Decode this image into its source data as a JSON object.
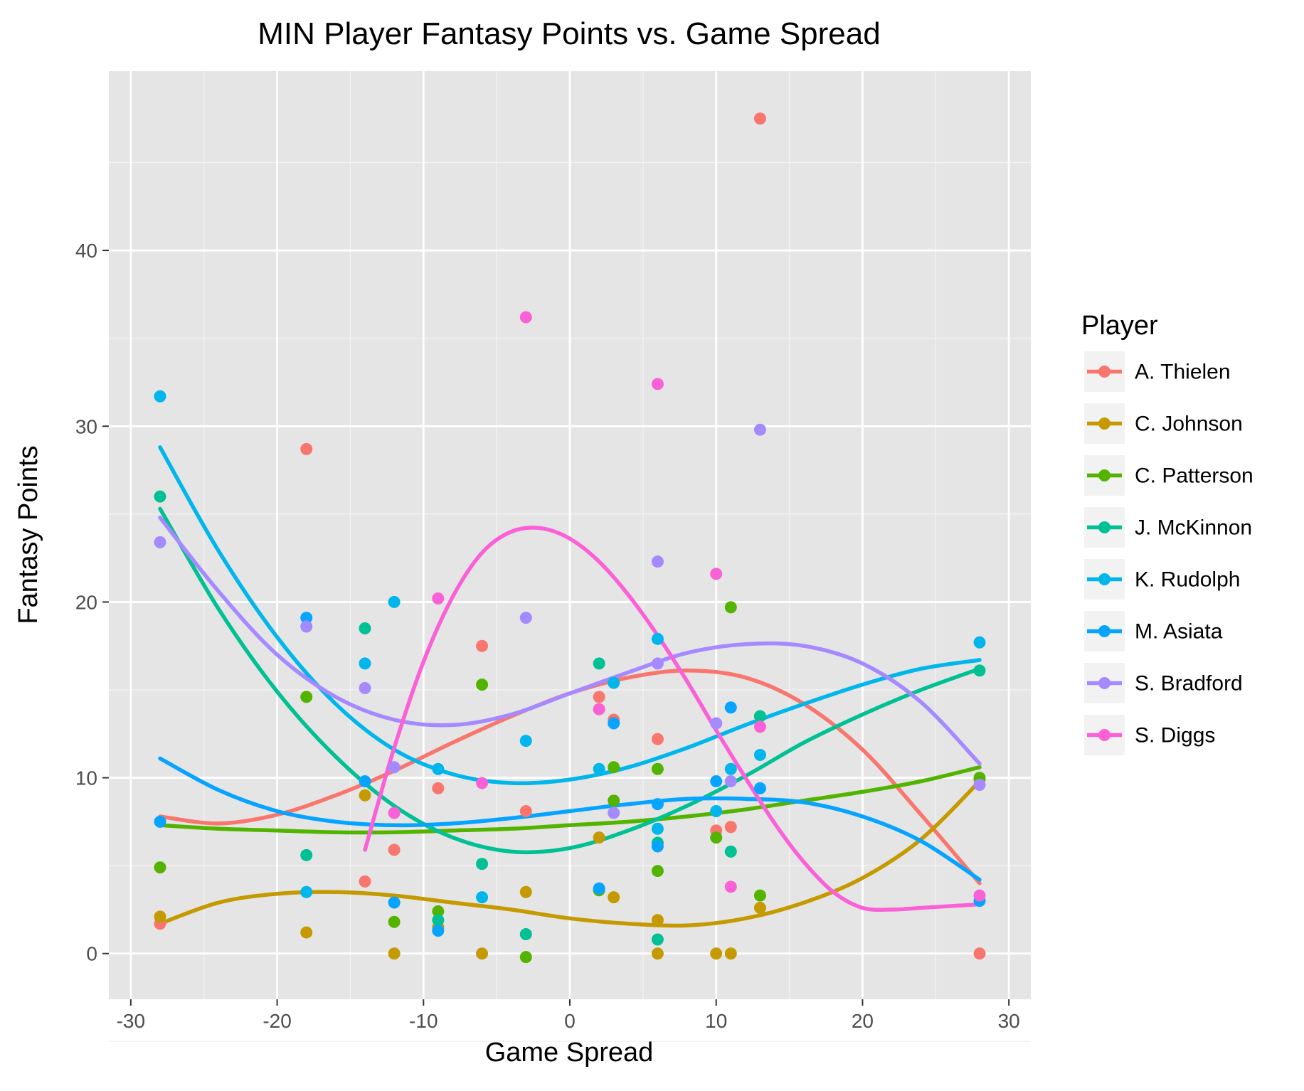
{
  "chart_data": {
    "type": "scatter",
    "title": "MIN Player Fantasy Points vs. Game Spread",
    "xlabel": "Game Spread",
    "ylabel": "Fantasy Points",
    "xlim": [
      -31.5,
      31.5
    ],
    "ylim": [
      -2.6,
      50.2
    ],
    "xticks": [
      -30,
      -20,
      -10,
      0,
      10,
      20,
      30
    ],
    "yticks": [
      0,
      10,
      20,
      30,
      40
    ],
    "grid": true,
    "legend_position": "right",
    "legend_title": "Player",
    "series": [
      {
        "name": "A. Thielen",
        "color": "#F8766D",
        "points": [
          [
            -28,
            1.7
          ],
          [
            -18,
            28.7
          ],
          [
            -14,
            4.1
          ],
          [
            -12,
            5.9
          ],
          [
            -9,
            9.4
          ],
          [
            -6,
            17.5
          ],
          [
            -3,
            8.1
          ],
          [
            2,
            14.6
          ],
          [
            3,
            13.3
          ],
          [
            6,
            12.2
          ],
          [
            10,
            7.0
          ],
          [
            11,
            7.2
          ],
          [
            13,
            47.5
          ],
          [
            28,
            0.0
          ]
        ],
        "trend": [
          [
            -28,
            7.8
          ],
          [
            -24,
            7.4
          ],
          [
            -20,
            7.9
          ],
          [
            -16,
            9.0
          ],
          [
            -12,
            10.4
          ],
          [
            -8,
            12.0
          ],
          [
            -4,
            13.5
          ],
          [
            0,
            14.8
          ],
          [
            4,
            15.7
          ],
          [
            8,
            16.1
          ],
          [
            12,
            15.7
          ],
          [
            16,
            14.2
          ],
          [
            20,
            11.6
          ],
          [
            24,
            7.9
          ],
          [
            28,
            4.0
          ]
        ]
      },
      {
        "name": "C. Johnson",
        "color": "#C49A00",
        "points": [
          [
            -28,
            2.1
          ],
          [
            -18,
            1.2
          ],
          [
            -14,
            9.0
          ],
          [
            -12,
            0.0
          ],
          [
            -9,
            1.5
          ],
          [
            -6,
            0.0
          ],
          [
            -3,
            3.5
          ],
          [
            2,
            6.6
          ],
          [
            3,
            3.2
          ],
          [
            6,
            1.9
          ],
          [
            6,
            0.0
          ],
          [
            10,
            0.0
          ],
          [
            11,
            0.0
          ],
          [
            13,
            2.6
          ],
          [
            28,
            9.9
          ]
        ],
        "trend": [
          [
            -28,
            1.7
          ],
          [
            -24,
            2.9
          ],
          [
            -20,
            3.4
          ],
          [
            -16,
            3.5
          ],
          [
            -12,
            3.3
          ],
          [
            -8,
            2.9
          ],
          [
            -4,
            2.5
          ],
          [
            0,
            2.0
          ],
          [
            4,
            1.7
          ],
          [
            8,
            1.6
          ],
          [
            12,
            2.0
          ],
          [
            16,
            2.9
          ],
          [
            20,
            4.3
          ],
          [
            24,
            6.5
          ],
          [
            28,
            9.8
          ]
        ]
      },
      {
        "name": "C. Patterson",
        "color": "#53B400",
        "points": [
          [
            -28,
            4.9
          ],
          [
            -18,
            14.6
          ],
          [
            -12,
            1.8
          ],
          [
            -9,
            2.4
          ],
          [
            -6,
            15.3
          ],
          [
            -3,
            -0.2
          ],
          [
            2,
            3.6
          ],
          [
            3,
            10.6
          ],
          [
            3,
            8.7
          ],
          [
            6,
            10.5
          ],
          [
            6,
            4.7
          ],
          [
            10,
            6.6
          ],
          [
            11,
            19.7
          ],
          [
            13,
            3.3
          ],
          [
            13,
            13.5
          ],
          [
            28,
            10.0
          ]
        ],
        "trend": [
          [
            -28,
            7.3
          ],
          [
            -24,
            7.1
          ],
          [
            -20,
            7.0
          ],
          [
            -16,
            6.9
          ],
          [
            -12,
            6.9
          ],
          [
            -8,
            7.0
          ],
          [
            -4,
            7.1
          ],
          [
            0,
            7.3
          ],
          [
            4,
            7.5
          ],
          [
            8,
            7.8
          ],
          [
            12,
            8.2
          ],
          [
            16,
            8.7
          ],
          [
            20,
            9.2
          ],
          [
            24,
            9.8
          ],
          [
            28,
            10.6
          ]
        ]
      },
      {
        "name": "J. McKinnon",
        "color": "#00C094",
        "points": [
          [
            -28,
            26.0
          ],
          [
            -18,
            5.6
          ],
          [
            -14,
            18.5
          ],
          [
            -9,
            1.9
          ],
          [
            -6,
            5.1
          ],
          [
            -3,
            1.1
          ],
          [
            2,
            16.5
          ],
          [
            6,
            6.3
          ],
          [
            6,
            0.8
          ],
          [
            11,
            5.8
          ],
          [
            13,
            13.5
          ],
          [
            28,
            16.1
          ]
        ],
        "trend": [
          [
            -28,
            25.3
          ],
          [
            -24,
            19.6
          ],
          [
            -20,
            14.9
          ],
          [
            -16,
            11.2
          ],
          [
            -12,
            8.4
          ],
          [
            -8,
            6.6
          ],
          [
            -4,
            5.8
          ],
          [
            0,
            6.0
          ],
          [
            4,
            7.0
          ],
          [
            8,
            8.4
          ],
          [
            12,
            10.1
          ],
          [
            16,
            12.0
          ],
          [
            20,
            13.6
          ],
          [
            24,
            15.0
          ],
          [
            28,
            16.2
          ]
        ]
      },
      {
        "name": "K. Rudolph",
        "color": "#00B6EB",
        "points": [
          [
            -28,
            31.7
          ],
          [
            -18,
            3.5
          ],
          [
            -14,
            16.5
          ],
          [
            -12,
            20.0
          ],
          [
            -9,
            10.5
          ],
          [
            -6,
            3.2
          ],
          [
            -3,
            12.1
          ],
          [
            2,
            10.5
          ],
          [
            3,
            15.4
          ],
          [
            6,
            17.9
          ],
          [
            6,
            7.1
          ],
          [
            10,
            8.1
          ],
          [
            11,
            10.5
          ],
          [
            13,
            11.3
          ],
          [
            28,
            17.7
          ]
        ],
        "trend": [
          [
            -28,
            28.8
          ],
          [
            -24,
            22.9
          ],
          [
            -20,
            18.0
          ],
          [
            -16,
            14.2
          ],
          [
            -12,
            11.6
          ],
          [
            -8,
            10.2
          ],
          [
            -4,
            9.7
          ],
          [
            0,
            9.9
          ],
          [
            4,
            10.6
          ],
          [
            8,
            11.7
          ],
          [
            12,
            13.0
          ],
          [
            16,
            14.2
          ],
          [
            20,
            15.3
          ],
          [
            24,
            16.2
          ],
          [
            28,
            16.7
          ]
        ]
      },
      {
        "name": "M. Asiata",
        "color": "#06A4FF",
        "points": [
          [
            -28,
            7.5
          ],
          [
            -18,
            19.1
          ],
          [
            -14,
            9.8
          ],
          [
            -12,
            2.9
          ],
          [
            -9,
            1.3
          ],
          [
            2,
            3.7
          ],
          [
            3,
            13.1
          ],
          [
            6,
            8.5
          ],
          [
            6,
            6.1
          ],
          [
            10,
            9.8
          ],
          [
            11,
            14.0
          ],
          [
            13,
            9.4
          ],
          [
            28,
            3.0
          ]
        ],
        "trend": [
          [
            -28,
            11.1
          ],
          [
            -24,
            9.3
          ],
          [
            -20,
            8.1
          ],
          [
            -16,
            7.5
          ],
          [
            -12,
            7.3
          ],
          [
            -8,
            7.4
          ],
          [
            -4,
            7.7
          ],
          [
            0,
            8.1
          ],
          [
            4,
            8.5
          ],
          [
            8,
            8.8
          ],
          [
            12,
            8.8
          ],
          [
            16,
            8.6
          ],
          [
            20,
            7.8
          ],
          [
            24,
            6.4
          ],
          [
            28,
            4.2
          ]
        ]
      },
      {
        "name": "S. Bradford",
        "color": "#A58AFF",
        "points": [
          [
            -28,
            23.4
          ],
          [
            -18,
            18.6
          ],
          [
            -14,
            15.1
          ],
          [
            -12,
            10.6
          ],
          [
            -3,
            19.1
          ],
          [
            3,
            8.0
          ],
          [
            6,
            22.3
          ],
          [
            6,
            16.5
          ],
          [
            10,
            13.1
          ],
          [
            11,
            9.8
          ],
          [
            13,
            29.8
          ],
          [
            28,
            9.6
          ]
        ],
        "trend": [
          [
            -28,
            24.8
          ],
          [
            -24,
            20.6
          ],
          [
            -20,
            17.0
          ],
          [
            -16,
            14.6
          ],
          [
            -12,
            13.3
          ],
          [
            -8,
            13.0
          ],
          [
            -4,
            13.6
          ],
          [
            0,
            14.8
          ],
          [
            4,
            16.0
          ],
          [
            8,
            17.1
          ],
          [
            12,
            17.6
          ],
          [
            16,
            17.5
          ],
          [
            20,
            16.5
          ],
          [
            24,
            14.3
          ],
          [
            28,
            10.8
          ]
        ]
      },
      {
        "name": "S. Diggs",
        "color": "#FB61D7",
        "points": [
          [
            -12,
            8.0
          ],
          [
            -9,
            20.2
          ],
          [
            -6,
            9.7
          ],
          [
            -3,
            36.2
          ],
          [
            2,
            13.9
          ],
          [
            6,
            32.4
          ],
          [
            10,
            21.6
          ],
          [
            11,
            3.8
          ],
          [
            13,
            12.9
          ],
          [
            28,
            3.3
          ]
        ],
        "trend": [
          [
            -14,
            5.9
          ],
          [
            -12,
            11.7
          ],
          [
            -10,
            16.6
          ],
          [
            -8,
            20.3
          ],
          [
            -6,
            22.8
          ],
          [
            -4,
            24.0
          ],
          [
            -2,
            24.2
          ],
          [
            0,
            23.6
          ],
          [
            2,
            22.3
          ],
          [
            4,
            20.4
          ],
          [
            6,
            18.1
          ],
          [
            8,
            15.5
          ],
          [
            10,
            12.7
          ],
          [
            12,
            10.0
          ],
          [
            14,
            7.4
          ],
          [
            16,
            5.2
          ],
          [
            18,
            3.5
          ],
          [
            20,
            2.6
          ],
          [
            22,
            2.5
          ],
          [
            24,
            2.6
          ],
          [
            26,
            2.7
          ],
          [
            28,
            2.8
          ]
        ]
      }
    ]
  }
}
